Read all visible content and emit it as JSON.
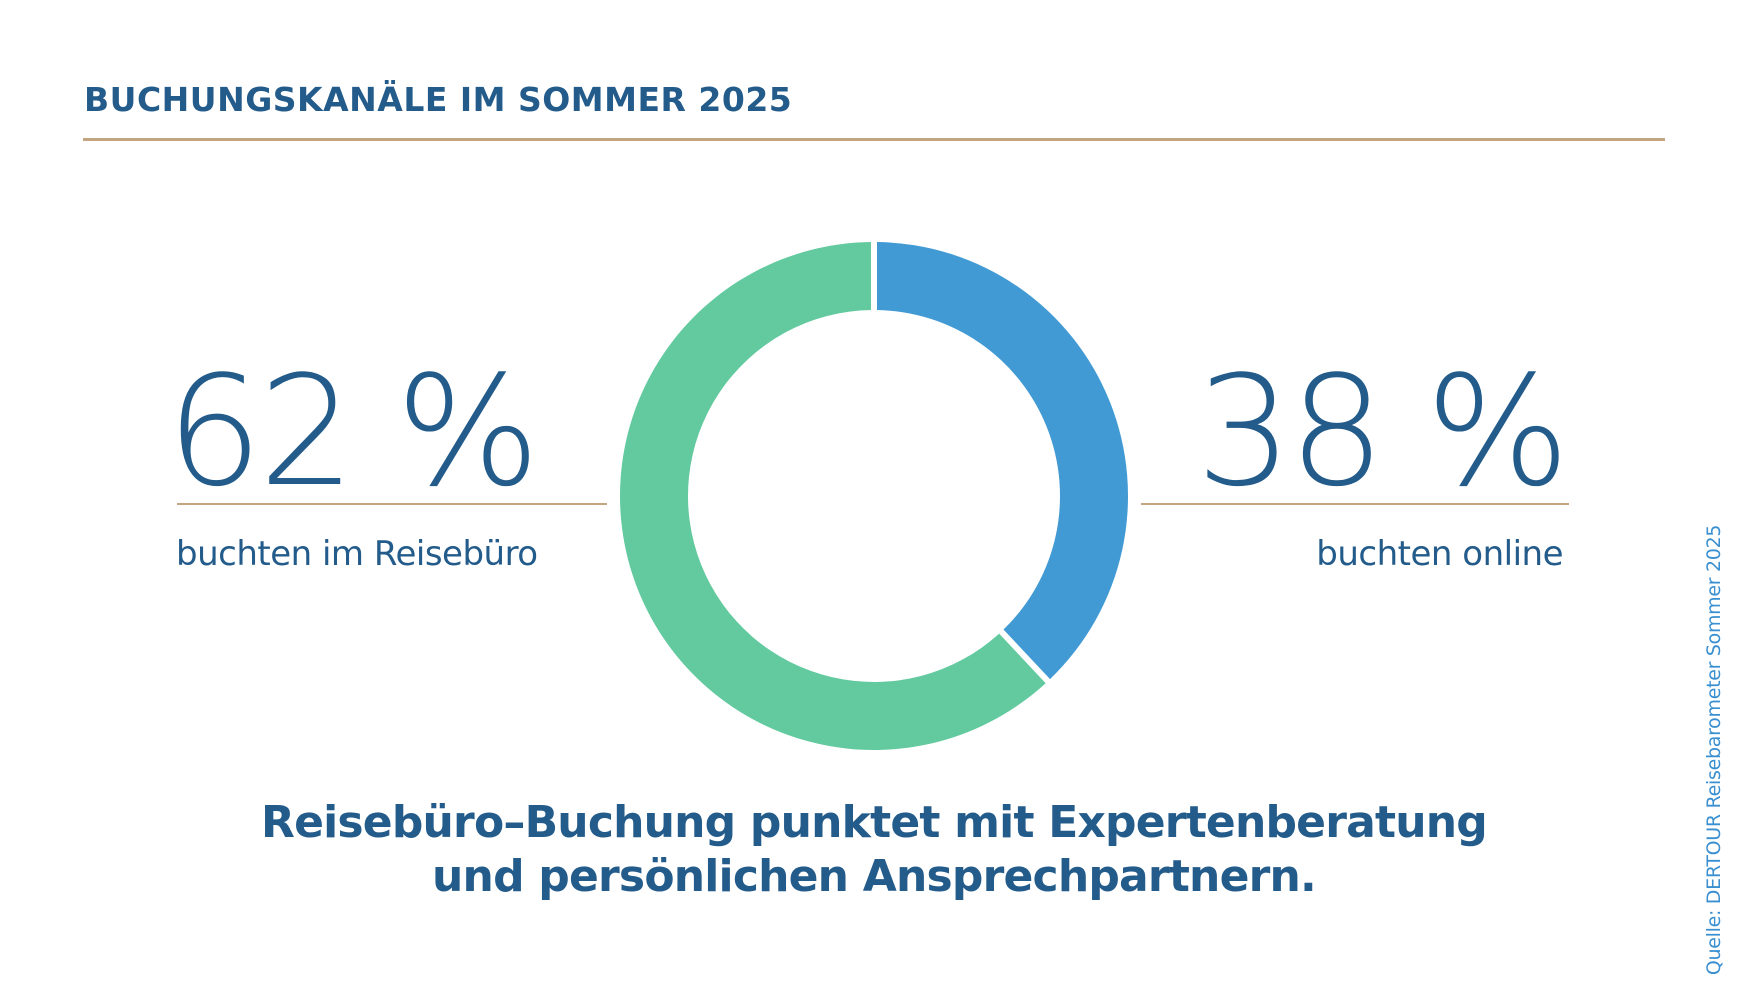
{
  "title": "BUCHUNGSKANÄLE IM SOMMER 2025",
  "colors": {
    "navy": "#235B8A",
    "tan": "#C4A582",
    "online": "#429AD4",
    "agency": "#62CA9E",
    "source": "#3A8FD0"
  },
  "left_stat": {
    "value": "62 %",
    "label": "buchten im Reisebüro"
  },
  "right_stat": {
    "value": "38 %",
    "label": "buchten online"
  },
  "headline": {
    "line1": "Reisebüro–Buchung punktet mit Expertenberatung",
    "line2": "und persönlichen Ansprechpartnern."
  },
  "source": "Quelle: DERTOUR Reisebarometer Sommer 2025",
  "chart_data": {
    "type": "pie",
    "variant": "donut",
    "title": "BUCHUNGSKANÄLE IM SOMMER 2025",
    "categories": [
      "buchten online",
      "buchten im Reisebüro"
    ],
    "values": [
      38,
      62
    ],
    "unit": "%",
    "colors": [
      "#429AD4",
      "#62CA9E"
    ],
    "start": "top",
    "direction": "clockwise"
  }
}
